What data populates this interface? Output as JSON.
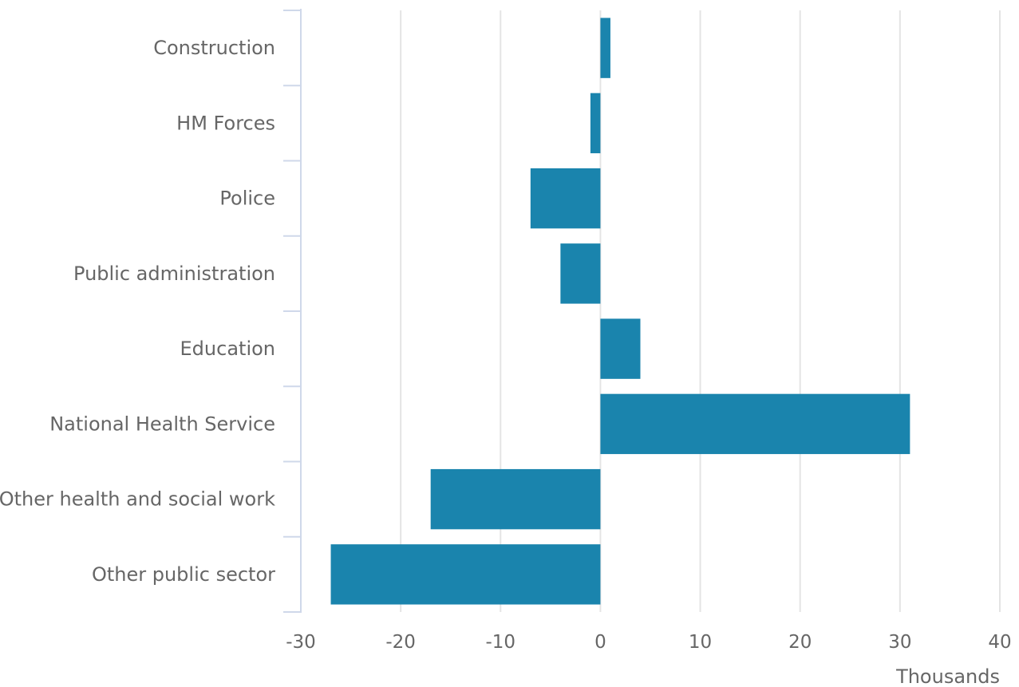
{
  "chart_data": {
    "type": "bar",
    "orientation": "horizontal",
    "categories": [
      "Construction",
      "HM Forces",
      "Police",
      "Public administration",
      "Education",
      "National Health Service",
      "Other health and social work",
      "Other public sector"
    ],
    "values": [
      1,
      -1,
      -7,
      -4,
      4,
      31,
      -17,
      -27
    ],
    "xlim": [
      -30,
      40
    ],
    "xticks": [
      "-30",
      "-20",
      "-10",
      "0",
      "10",
      "20",
      "30",
      "40"
    ],
    "xlabel": "Thousands",
    "grid": true,
    "bar_color": "#1a84ad"
  }
}
